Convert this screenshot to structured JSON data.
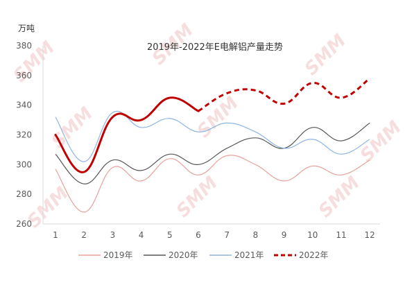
{
  "chart_data": {
    "type": "line",
    "title": "2019年-2022年E电解铝产量走势",
    "ylabel": "万吨",
    "xlabel": "",
    "ylim": [
      260,
      380
    ],
    "yticks": [
      260,
      280,
      300,
      320,
      340,
      360,
      380
    ],
    "categories": [
      "1",
      "2",
      "3",
      "4",
      "5",
      "6",
      "7",
      "8",
      "9",
      "10",
      "11",
      "12"
    ],
    "grid": false,
    "legend_position": "bottom",
    "series": [
      {
        "name": "2019年",
        "color": "#e8a09c",
        "style": "solid",
        "width": 1.2,
        "values": [
          297,
          268,
          298,
          289,
          304,
          293,
          306,
          300,
          289,
          299,
          293,
          303
        ]
      },
      {
        "name": "2020年",
        "color": "#555555",
        "style": "solid",
        "width": 1.2,
        "values": [
          307,
          287,
          303,
          296,
          307,
          300,
          311,
          318,
          311,
          325,
          316,
          328
        ]
      },
      {
        "name": "2021年",
        "color": "#8db4e2",
        "style": "solid",
        "width": 1.2,
        "values": [
          332,
          302,
          335,
          325,
          331,
          322,
          328,
          322,
          311,
          317,
          307,
          317
        ]
      },
      {
        "name": "2022年",
        "color": "#c00000",
        "style": "mixed",
        "width": 3,
        "solid_until_index": 5,
        "values": [
          320,
          295,
          332,
          330,
          345,
          336,
          348,
          350,
          341,
          355,
          345,
          358
        ]
      }
    ]
  },
  "watermark": {
    "text": "SMM",
    "color": "#f2c4c4"
  }
}
